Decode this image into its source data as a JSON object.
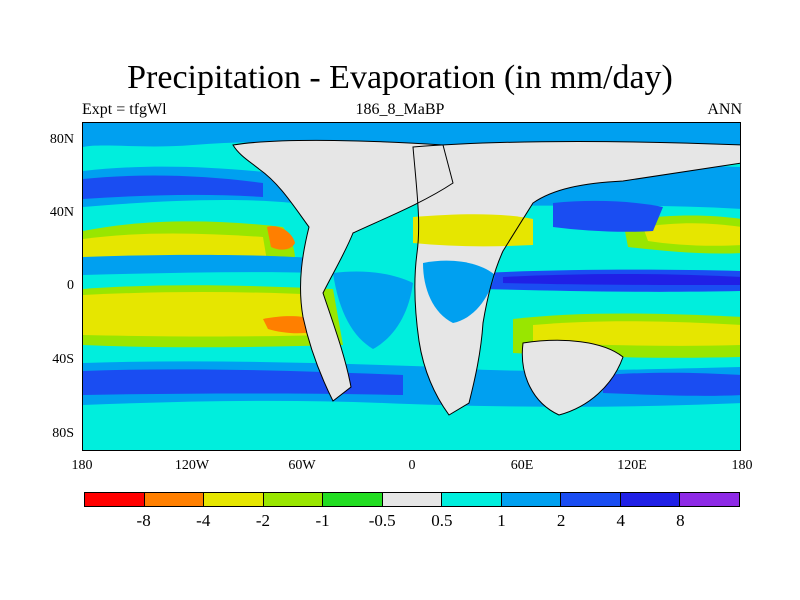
{
  "title": "Precipitation - Evaporation (in mm/day)",
  "subtitle_left": "Expt = tfgWl",
  "subtitle_center": "186_8_MaBP",
  "subtitle_right": "ANN",
  "y_axis": {
    "ticks": [
      "80N",
      "40N",
      "0",
      "40S",
      "80S"
    ]
  },
  "x_axis": {
    "ticks": [
      "180",
      "120W",
      "60W",
      "0",
      "60E",
      "120E",
      "180"
    ]
  },
  "colorbar": {
    "colors": [
      "#ff0000",
      "#ff7f00",
      "#e6e600",
      "#99e600",
      "#22dd22",
      "#e6e6e6",
      "#00eedd",
      "#00a0f0",
      "#1a4df2",
      "#2020e6",
      "#8e2ae6"
    ],
    "labels": [
      "-8",
      "-4",
      "-2",
      "-1",
      "-0.5",
      "0.5",
      "1",
      "2",
      "4",
      "8"
    ]
  }
}
